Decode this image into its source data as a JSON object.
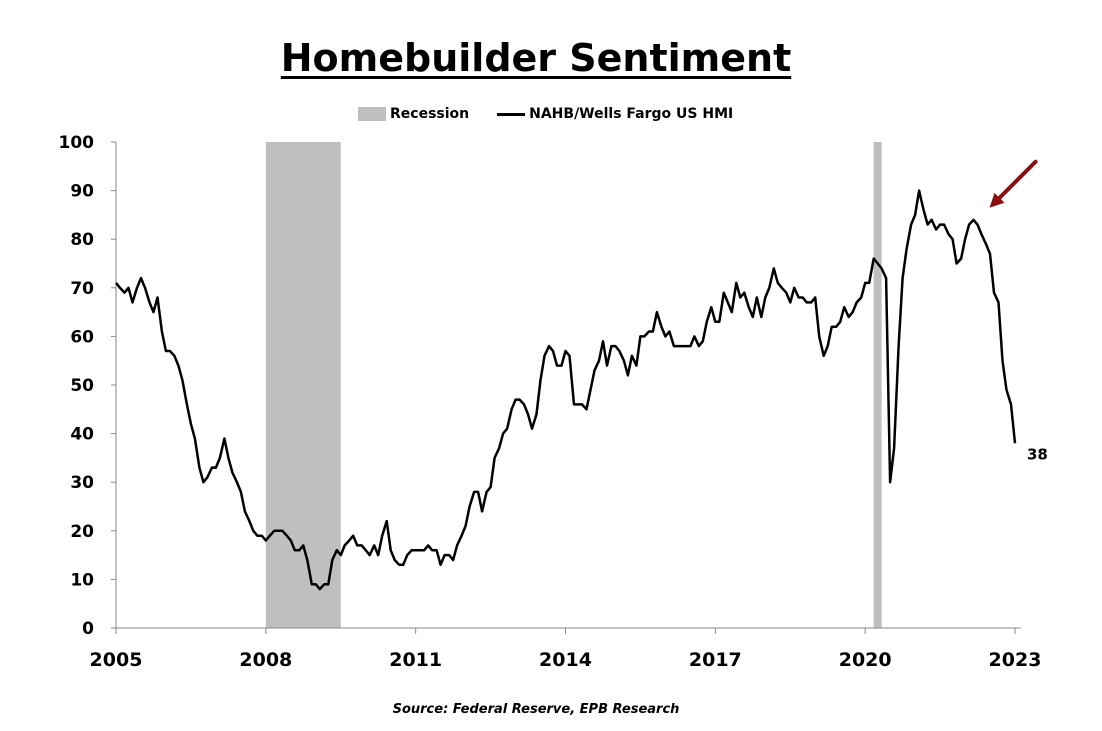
{
  "chart_data": {
    "type": "line",
    "title": "Homebuilder Sentiment",
    "source": "Source: Federal Reserve, EPB Research",
    "ylim": [
      0,
      100
    ],
    "xlim": [
      2005.0,
      2023.0
    ],
    "y_ticks": [
      0,
      10,
      20,
      30,
      40,
      50,
      60,
      70,
      80,
      90,
      100
    ],
    "x_ticks": [
      2005,
      2008,
      2011,
      2014,
      2017,
      2020,
      2023
    ],
    "grid": false,
    "legend": {
      "position": "top",
      "entries": [
        "Recession",
        "NAHB/Wells Fargo US HMI"
      ]
    },
    "recessions": [
      {
        "label": "Recession",
        "start": 2008.0,
        "end": 2009.5
      },
      {
        "label": "Recession",
        "start": 2020.17,
        "end": 2020.33
      }
    ],
    "series": [
      {
        "name": "NAHB/Wells Fargo US HMI",
        "color": "#000000",
        "end_label": "38",
        "points": [
          [
            2005.0,
            71
          ],
          [
            2005.08,
            70
          ],
          [
            2005.17,
            69
          ],
          [
            2005.25,
            70
          ],
          [
            2005.33,
            67
          ],
          [
            2005.42,
            70
          ],
          [
            2005.5,
            72
          ],
          [
            2005.58,
            70
          ],
          [
            2005.67,
            67
          ],
          [
            2005.75,
            65
          ],
          [
            2005.83,
            68
          ],
          [
            2005.92,
            61
          ],
          [
            2006.0,
            57
          ],
          [
            2006.08,
            57
          ],
          [
            2006.17,
            56
          ],
          [
            2006.25,
            54
          ],
          [
            2006.33,
            51
          ],
          [
            2006.42,
            46
          ],
          [
            2006.5,
            42
          ],
          [
            2006.58,
            39
          ],
          [
            2006.67,
            33
          ],
          [
            2006.75,
            30
          ],
          [
            2006.83,
            31
          ],
          [
            2006.92,
            33
          ],
          [
            2007.0,
            33
          ],
          [
            2007.08,
            35
          ],
          [
            2007.17,
            39
          ],
          [
            2007.25,
            35
          ],
          [
            2007.33,
            32
          ],
          [
            2007.42,
            30
          ],
          [
            2007.5,
            28
          ],
          [
            2007.58,
            24
          ],
          [
            2007.67,
            22
          ],
          [
            2007.75,
            20
          ],
          [
            2007.83,
            19
          ],
          [
            2007.92,
            19
          ],
          [
            2008.0,
            18
          ],
          [
            2008.08,
            19
          ],
          [
            2008.17,
            20
          ],
          [
            2008.25,
            20
          ],
          [
            2008.33,
            20
          ],
          [
            2008.42,
            19
          ],
          [
            2008.5,
            18
          ],
          [
            2008.58,
            16
          ],
          [
            2008.67,
            16
          ],
          [
            2008.75,
            17
          ],
          [
            2008.83,
            14
          ],
          [
            2008.92,
            9
          ],
          [
            2009.0,
            9
          ],
          [
            2009.08,
            8
          ],
          [
            2009.17,
            9
          ],
          [
            2009.25,
            9
          ],
          [
            2009.33,
            14
          ],
          [
            2009.42,
            16
          ],
          [
            2009.5,
            15
          ],
          [
            2009.58,
            17
          ],
          [
            2009.67,
            18
          ],
          [
            2009.75,
            19
          ],
          [
            2009.83,
            17
          ],
          [
            2009.92,
            17
          ],
          [
            2010.0,
            16
          ],
          [
            2010.08,
            15
          ],
          [
            2010.17,
            17
          ],
          [
            2010.25,
            15
          ],
          [
            2010.33,
            19
          ],
          [
            2010.42,
            22
          ],
          [
            2010.5,
            16
          ],
          [
            2010.58,
            14
          ],
          [
            2010.67,
            13
          ],
          [
            2010.75,
            13
          ],
          [
            2010.83,
            15
          ],
          [
            2010.92,
            16
          ],
          [
            2011.0,
            16
          ],
          [
            2011.08,
            16
          ],
          [
            2011.17,
            16
          ],
          [
            2011.25,
            17
          ],
          [
            2011.33,
            16
          ],
          [
            2011.42,
            16
          ],
          [
            2011.5,
            13
          ],
          [
            2011.58,
            15
          ],
          [
            2011.67,
            15
          ],
          [
            2011.75,
            14
          ],
          [
            2011.83,
            17
          ],
          [
            2011.92,
            19
          ],
          [
            2012.0,
            21
          ],
          [
            2012.08,
            25
          ],
          [
            2012.17,
            28
          ],
          [
            2012.25,
            28
          ],
          [
            2012.33,
            24
          ],
          [
            2012.42,
            28
          ],
          [
            2012.5,
            29
          ],
          [
            2012.58,
            35
          ],
          [
            2012.67,
            37
          ],
          [
            2012.75,
            40
          ],
          [
            2012.83,
            41
          ],
          [
            2012.92,
            45
          ],
          [
            2013.0,
            47
          ],
          [
            2013.08,
            47
          ],
          [
            2013.17,
            46
          ],
          [
            2013.25,
            44
          ],
          [
            2013.33,
            41
          ],
          [
            2013.42,
            44
          ],
          [
            2013.5,
            51
          ],
          [
            2013.58,
            56
          ],
          [
            2013.67,
            58
          ],
          [
            2013.75,
            57
          ],
          [
            2013.83,
            54
          ],
          [
            2013.92,
            54
          ],
          [
            2014.0,
            57
          ],
          [
            2014.08,
            56
          ],
          [
            2014.17,
            46
          ],
          [
            2014.25,
            46
          ],
          [
            2014.33,
            46
          ],
          [
            2014.42,
            45
          ],
          [
            2014.5,
            49
          ],
          [
            2014.58,
            53
          ],
          [
            2014.67,
            55
          ],
          [
            2014.75,
            59
          ],
          [
            2014.83,
            54
          ],
          [
            2014.92,
            58
          ],
          [
            2015.0,
            58
          ],
          [
            2015.08,
            57
          ],
          [
            2015.17,
            55
          ],
          [
            2015.25,
            52
          ],
          [
            2015.33,
            56
          ],
          [
            2015.42,
            54
          ],
          [
            2015.5,
            60
          ],
          [
            2015.58,
            60
          ],
          [
            2015.67,
            61
          ],
          [
            2015.75,
            61
          ],
          [
            2015.83,
            65
          ],
          [
            2015.92,
            62
          ],
          [
            2016.0,
            60
          ],
          [
            2016.08,
            61
          ],
          [
            2016.17,
            58
          ],
          [
            2016.25,
            58
          ],
          [
            2016.33,
            58
          ],
          [
            2016.42,
            58
          ],
          [
            2016.5,
            58
          ],
          [
            2016.58,
            60
          ],
          [
            2016.67,
            58
          ],
          [
            2016.75,
            59
          ],
          [
            2016.83,
            63
          ],
          [
            2016.92,
            66
          ],
          [
            2017.0,
            63
          ],
          [
            2017.08,
            63
          ],
          [
            2017.17,
            69
          ],
          [
            2017.25,
            67
          ],
          [
            2017.33,
            65
          ],
          [
            2017.42,
            71
          ],
          [
            2017.5,
            68
          ],
          [
            2017.58,
            69
          ],
          [
            2017.67,
            66
          ],
          [
            2017.75,
            64
          ],
          [
            2017.83,
            68
          ],
          [
            2017.92,
            64
          ],
          [
            2018.0,
            68
          ],
          [
            2018.08,
            70
          ],
          [
            2018.17,
            74
          ],
          [
            2018.25,
            71
          ],
          [
            2018.33,
            70
          ],
          [
            2018.42,
            69
          ],
          [
            2018.5,
            67
          ],
          [
            2018.58,
            70
          ],
          [
            2018.67,
            68
          ],
          [
            2018.75,
            68
          ],
          [
            2018.83,
            67
          ],
          [
            2018.92,
            67
          ],
          [
            2019.0,
            68
          ],
          [
            2019.08,
            60
          ],
          [
            2019.17,
            56
          ],
          [
            2019.25,
            58
          ],
          [
            2019.33,
            62
          ],
          [
            2019.42,
            62
          ],
          [
            2019.5,
            63
          ],
          [
            2019.58,
            66
          ],
          [
            2019.67,
            64
          ],
          [
            2019.75,
            65
          ],
          [
            2019.83,
            67
          ],
          [
            2019.92,
            68
          ],
          [
            2020.0,
            71
          ],
          [
            2020.08,
            71
          ],
          [
            2020.17,
            76
          ],
          [
            2020.25,
            75
          ],
          [
            2020.33,
            74
          ],
          [
            2020.42,
            72
          ],
          [
            2020.5,
            30
          ],
          [
            2020.58,
            37
          ],
          [
            2020.67,
            58
          ],
          [
            2020.75,
            72
          ],
          [
            2020.83,
            78
          ],
          [
            2020.92,
            83
          ],
          [
            2021.0,
            85
          ],
          [
            2021.08,
            90
          ],
          [
            2021.17,
            86
          ],
          [
            2021.25,
            83
          ],
          [
            2021.33,
            84
          ],
          [
            2021.42,
            82
          ],
          [
            2021.5,
            83
          ],
          [
            2021.58,
            83
          ],
          [
            2021.67,
            81
          ],
          [
            2021.75,
            80
          ],
          [
            2021.83,
            75
          ],
          [
            2021.92,
            76
          ],
          [
            2022.0,
            80
          ],
          [
            2022.08,
            83
          ],
          [
            2022.17,
            84
          ],
          [
            2022.25,
            83
          ],
          [
            2022.33,
            81
          ],
          [
            2022.42,
            79
          ],
          [
            2022.5,
            77
          ],
          [
            2022.58,
            69
          ],
          [
            2022.67,
            67
          ],
          [
            2022.75,
            55
          ],
          [
            2022.83,
            49
          ],
          [
            2022.92,
            46
          ],
          [
            2023.0,
            38
          ]
        ]
      }
    ],
    "annotations": [
      {
        "type": "arrow",
        "color": "#8b0f0f",
        "points_to": [
          2022.17,
          84
        ]
      }
    ]
  }
}
